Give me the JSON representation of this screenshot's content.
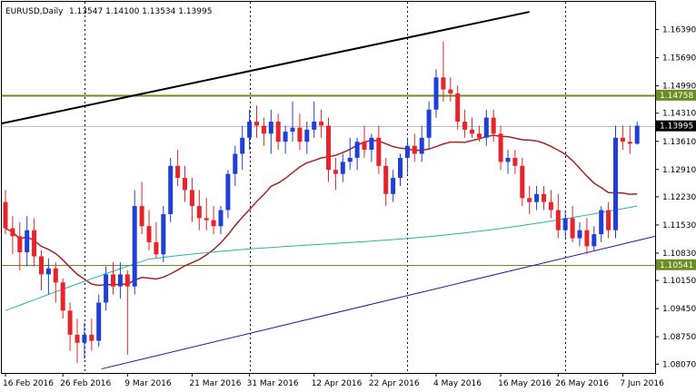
{
  "header": {
    "symbol": "EURUSD,Daily",
    "ohlc": "1.13547 1.14100 1.13534 1.13995"
  },
  "colors": {
    "bull": "#1f3fd6",
    "bear": "#e8232a",
    "ma_fast": "#a52323",
    "ma_slow": "#27b3a8",
    "hline": "#6b8e23",
    "trend_top": "#000000",
    "trend_bottom": "#1c1c9c",
    "price_tag": "#000000",
    "level_tag": "#6b8e23"
  },
  "chart_data": {
    "type": "candlestick",
    "title": "EURUSD,Daily",
    "ylim": [
      1.0785,
      1.1708
    ],
    "y_ticks": [
      "1.16390",
      "1.15690",
      "1.14990",
      "1.14310",
      "1.13610",
      "1.12910",
      "1.12230",
      "1.11530",
      "1.10830",
      "1.10150",
      "1.09450",
      "1.08750",
      "1.08070"
    ],
    "x_ticks": [
      {
        "label": "16 Feb 2016",
        "index": 0
      },
      {
        "label": "26 Feb 2016",
        "index": 8
      },
      {
        "label": "9 Mar 2016",
        "index": 17
      },
      {
        "label": "21 Mar 2016",
        "index": 26
      },
      {
        "label": "31 Mar 2016",
        "index": 34
      },
      {
        "label": "12 Apr 2016",
        "index": 43
      },
      {
        "label": "22 Apr 2016",
        "index": 51
      },
      {
        "label": "4 May 2016",
        "index": 60
      },
      {
        "label": "16 May 2016",
        "index": 69
      },
      {
        "label": "26 May 2016",
        "index": 77
      },
      {
        "label": "7 Jun 2016",
        "index": 86
      }
    ],
    "vertical_lines": [
      11,
      34,
      56,
      78
    ],
    "current_price": "1.13995",
    "current_price_value": 1.13995,
    "horizontal_levels": [
      {
        "label": "1.14758",
        "value": 1.14758
      },
      {
        "label": "1.10541",
        "value": 1.10541
      }
    ],
    "trendlines": [
      {
        "name": "upper",
        "x0": 0,
        "y0": 1.1405,
        "x1": 73,
        "y1": 1.1683
      },
      {
        "name": "lower",
        "x0": 14,
        "y0": 1.0795,
        "x1": 102,
        "y1": 1.1125
      }
    ],
    "candles": [
      {
        "o": 1.121,
        "h": 1.124,
        "l": 1.113,
        "c": 1.1145
      },
      {
        "o": 1.1145,
        "h": 1.1175,
        "l": 1.108,
        "c": 1.1125
      },
      {
        "o": 1.1125,
        "h": 1.116,
        "l": 1.104,
        "c": 1.1085
      },
      {
        "o": 1.1085,
        "h": 1.1175,
        "l": 1.105,
        "c": 1.114
      },
      {
        "o": 1.114,
        "h": 1.117,
        "l": 1.105,
        "c": 1.1075
      },
      {
        "o": 1.1075,
        "h": 1.109,
        "l": 1.099,
        "c": 1.103
      },
      {
        "o": 1.103,
        "h": 1.107,
        "l": 1.098,
        "c": 1.1045
      },
      {
        "o": 1.1045,
        "h": 1.106,
        "l": 1.096,
        "c": 1.101
      },
      {
        "o": 1.101,
        "h": 1.102,
        "l": 1.092,
        "c": 1.094
      },
      {
        "o": 1.094,
        "h": 1.096,
        "l": 1.084,
        "c": 1.088
      },
      {
        "o": 1.088,
        "h": 1.092,
        "l": 1.081,
        "c": 1.086
      },
      {
        "o": 1.086,
        "h": 1.091,
        "l": 1.082,
        "c": 1.088
      },
      {
        "o": 1.088,
        "h": 1.092,
        "l": 1.084,
        "c": 1.0865
      },
      {
        "o": 1.0865,
        "h": 1.098,
        "l": 1.085,
        "c": 1.096
      },
      {
        "o": 1.096,
        "h": 1.105,
        "l": 1.094,
        "c": 1.103
      },
      {
        "o": 1.103,
        "h": 1.106,
        "l": 1.098,
        "c": 1.1
      },
      {
        "o": 1.1,
        "h": 1.106,
        "l": 1.097,
        "c": 1.103
      },
      {
        "o": 1.103,
        "h": 1.104,
        "l": 1.083,
        "c": 1.1
      },
      {
        "o": 1.1,
        "h": 1.124,
        "l": 1.098,
        "c": 1.12
      },
      {
        "o": 1.12,
        "h": 1.126,
        "l": 1.113,
        "c": 1.115
      },
      {
        "o": 1.115,
        "h": 1.119,
        "l": 1.109,
        "c": 1.111
      },
      {
        "o": 1.111,
        "h": 1.116,
        "l": 1.107,
        "c": 1.108
      },
      {
        "o": 1.108,
        "h": 1.12,
        "l": 1.106,
        "c": 1.118
      },
      {
        "o": 1.118,
        "h": 1.132,
        "l": 1.116,
        "c": 1.13
      },
      {
        "o": 1.13,
        "h": 1.134,
        "l": 1.125,
        "c": 1.127
      },
      {
        "o": 1.127,
        "h": 1.13,
        "l": 1.121,
        "c": 1.124
      },
      {
        "o": 1.124,
        "h": 1.127,
        "l": 1.116,
        "c": 1.12
      },
      {
        "o": 1.12,
        "h": 1.124,
        "l": 1.114,
        "c": 1.117
      },
      {
        "o": 1.117,
        "h": 1.122,
        "l": 1.114,
        "c": 1.1165
      },
      {
        "o": 1.1165,
        "h": 1.12,
        "l": 1.113,
        "c": 1.115
      },
      {
        "o": 1.115,
        "h": 1.12,
        "l": 1.113,
        "c": 1.119
      },
      {
        "o": 1.119,
        "h": 1.129,
        "l": 1.117,
        "c": 1.128
      },
      {
        "o": 1.128,
        "h": 1.135,
        "l": 1.125,
        "c": 1.133
      },
      {
        "o": 1.133,
        "h": 1.14,
        "l": 1.129,
        "c": 1.137
      },
      {
        "o": 1.137,
        "h": 1.144,
        "l": 1.134,
        "c": 1.141
      },
      {
        "o": 1.141,
        "h": 1.145,
        "l": 1.137,
        "c": 1.14
      },
      {
        "o": 1.14,
        "h": 1.142,
        "l": 1.135,
        "c": 1.138
      },
      {
        "o": 1.138,
        "h": 1.144,
        "l": 1.133,
        "c": 1.141
      },
      {
        "o": 1.141,
        "h": 1.143,
        "l": 1.134,
        "c": 1.136
      },
      {
        "o": 1.136,
        "h": 1.14,
        "l": 1.133,
        "c": 1.1385
      },
      {
        "o": 1.1385,
        "h": 1.146,
        "l": 1.136,
        "c": 1.1395
      },
      {
        "o": 1.1395,
        "h": 1.143,
        "l": 1.134,
        "c": 1.136
      },
      {
        "o": 1.136,
        "h": 1.141,
        "l": 1.133,
        "c": 1.139
      },
      {
        "o": 1.139,
        "h": 1.146,
        "l": 1.137,
        "c": 1.141
      },
      {
        "o": 1.141,
        "h": 1.144,
        "l": 1.137,
        "c": 1.14
      },
      {
        "o": 1.14,
        "h": 1.142,
        "l": 1.126,
        "c": 1.129
      },
      {
        "o": 1.129,
        "h": 1.132,
        "l": 1.124,
        "c": 1.128
      },
      {
        "o": 1.128,
        "h": 1.133,
        "l": 1.126,
        "c": 1.131
      },
      {
        "o": 1.131,
        "h": 1.137,
        "l": 1.129,
        "c": 1.132
      },
      {
        "o": 1.132,
        "h": 1.137,
        "l": 1.129,
        "c": 1.136
      },
      {
        "o": 1.136,
        "h": 1.14,
        "l": 1.132,
        "c": 1.134
      },
      {
        "o": 1.134,
        "h": 1.138,
        "l": 1.131,
        "c": 1.137
      },
      {
        "o": 1.137,
        "h": 1.14,
        "l": 1.128,
        "c": 1.13
      },
      {
        "o": 1.13,
        "h": 1.132,
        "l": 1.12,
        "c": 1.123
      },
      {
        "o": 1.123,
        "h": 1.129,
        "l": 1.121,
        "c": 1.127
      },
      {
        "o": 1.127,
        "h": 1.133,
        "l": 1.125,
        "c": 1.132
      },
      {
        "o": 1.132,
        "h": 1.137,
        "l": 1.128,
        "c": 1.135
      },
      {
        "o": 1.135,
        "h": 1.138,
        "l": 1.131,
        "c": 1.133
      },
      {
        "o": 1.133,
        "h": 1.14,
        "l": 1.131,
        "c": 1.137
      },
      {
        "o": 1.137,
        "h": 1.146,
        "l": 1.134,
        "c": 1.144
      },
      {
        "o": 1.144,
        "h": 1.154,
        "l": 1.142,
        "c": 1.152
      },
      {
        "o": 1.152,
        "h": 1.161,
        "l": 1.146,
        "c": 1.149
      },
      {
        "o": 1.149,
        "h": 1.152,
        "l": 1.146,
        "c": 1.148
      },
      {
        "o": 1.148,
        "h": 1.15,
        "l": 1.139,
        "c": 1.141
      },
      {
        "o": 1.141,
        "h": 1.144,
        "l": 1.137,
        "c": 1.139
      },
      {
        "o": 1.139,
        "h": 1.142,
        "l": 1.137,
        "c": 1.138
      },
      {
        "o": 1.138,
        "h": 1.14,
        "l": 1.136,
        "c": 1.137
      },
      {
        "o": 1.137,
        "h": 1.144,
        "l": 1.135,
        "c": 1.142
      },
      {
        "o": 1.142,
        "h": 1.144,
        "l": 1.136,
        "c": 1.138
      },
      {
        "o": 1.138,
        "h": 1.14,
        "l": 1.129,
        "c": 1.131
      },
      {
        "o": 1.131,
        "h": 1.134,
        "l": 1.128,
        "c": 1.132
      },
      {
        "o": 1.132,
        "h": 1.134,
        "l": 1.128,
        "c": 1.13
      },
      {
        "o": 1.13,
        "h": 1.132,
        "l": 1.12,
        "c": 1.122
      },
      {
        "o": 1.122,
        "h": 1.125,
        "l": 1.118,
        "c": 1.121
      },
      {
        "o": 1.121,
        "h": 1.125,
        "l": 1.119,
        "c": 1.123
      },
      {
        "o": 1.123,
        "h": 1.125,
        "l": 1.119,
        "c": 1.121
      },
      {
        "o": 1.121,
        "h": 1.124,
        "l": 1.117,
        "c": 1.119
      },
      {
        "o": 1.119,
        "h": 1.123,
        "l": 1.112,
        "c": 1.114
      },
      {
        "o": 1.114,
        "h": 1.119,
        "l": 1.112,
        "c": 1.117
      },
      {
        "o": 1.117,
        "h": 1.12,
        "l": 1.111,
        "c": 1.112
      },
      {
        "o": 1.112,
        "h": 1.116,
        "l": 1.11,
        "c": 1.114
      },
      {
        "o": 1.114,
        "h": 1.117,
        "l": 1.108,
        "c": 1.11
      },
      {
        "o": 1.11,
        "h": 1.115,
        "l": 1.109,
        "c": 1.113
      },
      {
        "o": 1.113,
        "h": 1.12,
        "l": 1.111,
        "c": 1.119
      },
      {
        "o": 1.119,
        "h": 1.121,
        "l": 1.112,
        "c": 1.114
      },
      {
        "o": 1.114,
        "h": 1.14,
        "l": 1.112,
        "c": 1.137
      },
      {
        "o": 1.137,
        "h": 1.14,
        "l": 1.134,
        "c": 1.136
      },
      {
        "o": 1.136,
        "h": 1.14,
        "l": 1.133,
        "c": 1.1355
      },
      {
        "o": 1.1355,
        "h": 1.141,
        "l": 1.1353,
        "c": 1.14
      }
    ]
  }
}
